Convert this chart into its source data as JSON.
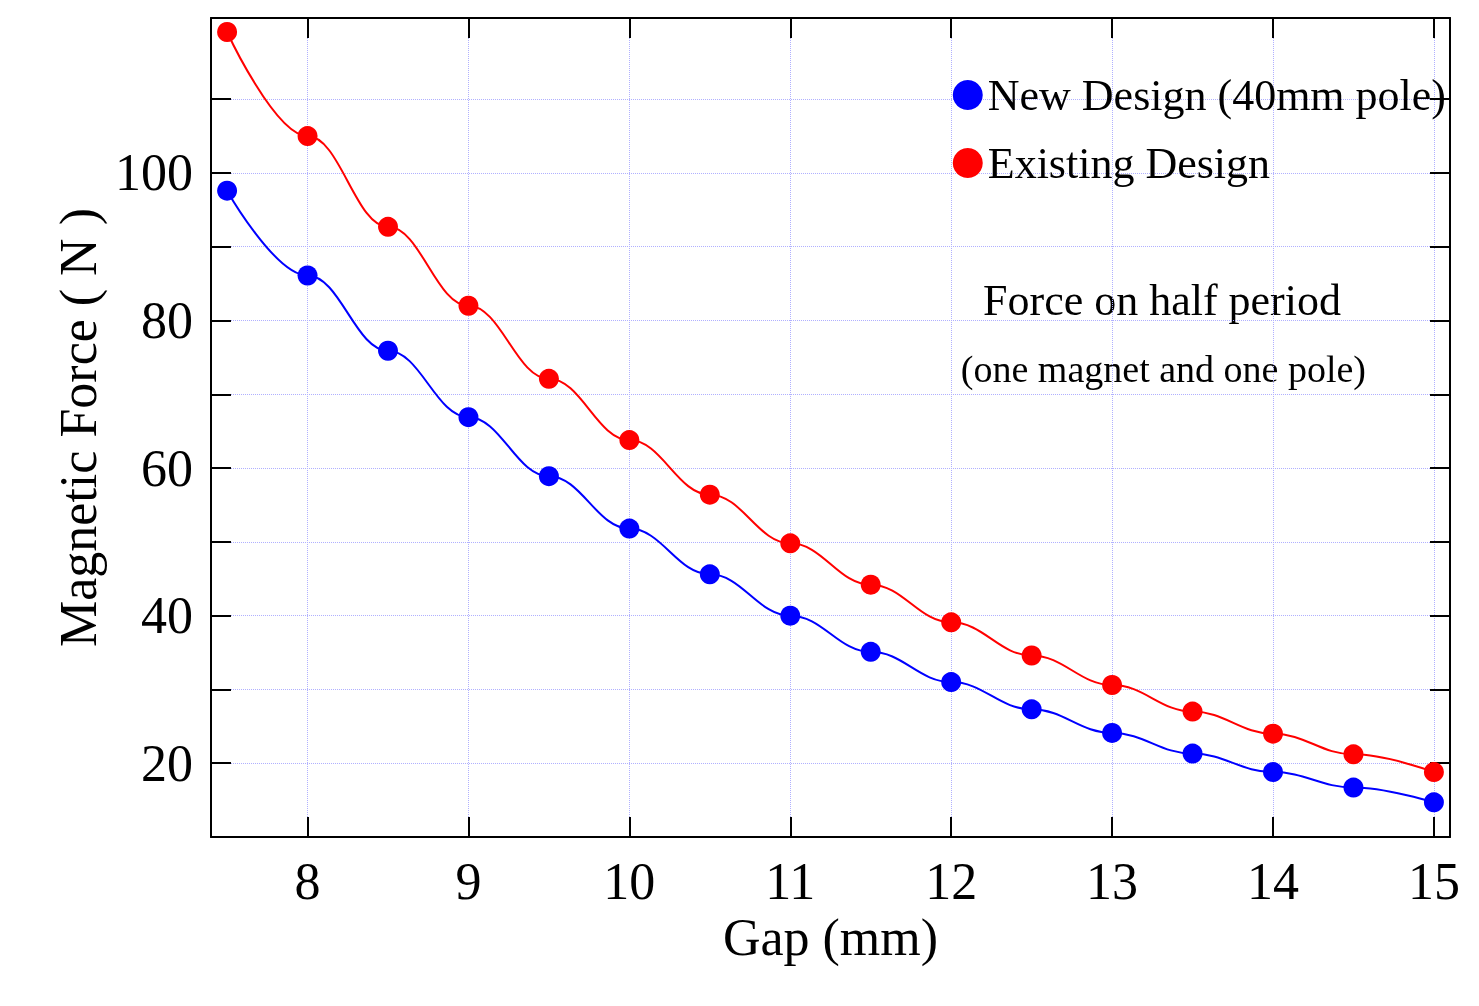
{
  "chart_data": {
    "type": "line",
    "xlabel": "Gap (mm)",
    "ylabel": "Magnetic Force ( N )",
    "x": [
      7.5,
      8,
      8.5,
      9,
      9.5,
      10,
      10.5,
      11,
      11.5,
      12,
      12.5,
      13,
      13.5,
      14,
      14.5,
      15
    ],
    "series": [
      {
        "name": "New Design (40mm pole)",
        "color": "#0000ff",
        "values": [
          97.6,
          86.1,
          75.9,
          66.9,
          58.9,
          51.8,
          45.6,
          40,
          35.1,
          31.0,
          27.3,
          24.1,
          21.3,
          18.8,
          16.7,
          14.7
        ]
      },
      {
        "name": "Existing Design",
        "color": "#ff0000",
        "values": [
          119.1,
          105.0,
          92.7,
          82.0,
          72.1,
          63.8,
          56.4,
          49.8,
          44.2,
          39.1,
          34.6,
          30.6,
          27.0,
          24.0,
          21.2,
          18.8
        ]
      }
    ],
    "xlim": [
      7.4,
      15.1
    ],
    "xticks": [
      8,
      9,
      10,
      11,
      12,
      13,
      14,
      15
    ],
    "ylim": [
      10,
      121
    ],
    "yticks": [
      20,
      {
        "value": 30,
        "label": null
      },
      40,
      {
        "value": 50,
        "label": null
      },
      60,
      {
        "value": 70,
        "label": null
      },
      80,
      {
        "value": 90,
        "label": null
      },
      100,
      {
        "value": 110,
        "label": null
      }
    ],
    "grid": true,
    "legend": "top right",
    "marker": "circle",
    "line_style": "solid",
    "annotations": [
      "Force on half period",
      "(one magnet and one pole)"
    ]
  }
}
